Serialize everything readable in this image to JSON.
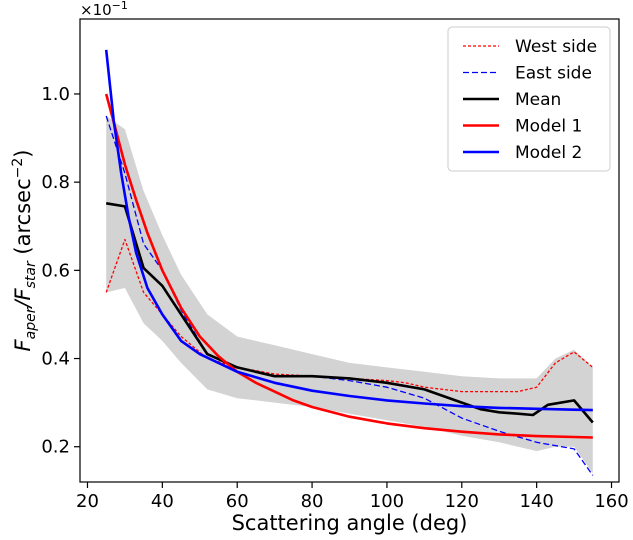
{
  "chart_data": {
    "type": "line",
    "xlabel": "Scattering angle (deg)",
    "ylabel": {
      "prefix": "F",
      "sub1": "aper",
      "slash": "/F",
      "sub2": "star",
      "units_open": " (arcsec",
      "units_exp": "−2",
      "units_close": ")"
    },
    "y_multiplier": {
      "base": "×10",
      "exp": "−1"
    },
    "xlim": [
      18,
      162
    ],
    "ylim": [
      0.12,
      1.17
    ],
    "x_ticks": [
      20,
      40,
      60,
      80,
      100,
      120,
      140,
      160
    ],
    "y_ticks": [
      0.2,
      0.4,
      0.6,
      0.8,
      1.0
    ],
    "x_tick_labels": [
      "20",
      "40",
      "60",
      "80",
      "100",
      "120",
      "140",
      "160"
    ],
    "y_tick_labels": [
      "0.2",
      "0.4",
      "0.6",
      "0.8",
      "1.0"
    ],
    "grid": false,
    "legend_position": "top-right",
    "band": {
      "color": "#d3d3d3",
      "x": [
        25,
        30,
        35,
        40,
        45,
        52,
        60,
        70,
        80,
        90,
        100,
        110,
        120,
        130,
        140,
        145,
        150,
        155
      ],
      "upper": [
        0.95,
        0.92,
        0.78,
        0.68,
        0.59,
        0.5,
        0.45,
        0.43,
        0.41,
        0.39,
        0.38,
        0.37,
        0.36,
        0.355,
        0.355,
        0.4,
        0.42,
        0.38
      ],
      "lower": [
        0.55,
        0.56,
        0.48,
        0.44,
        0.39,
        0.33,
        0.31,
        0.3,
        0.29,
        0.275,
        0.26,
        0.245,
        0.225,
        0.21,
        0.19,
        0.2,
        0.2,
        0.14
      ]
    },
    "series": [
      {
        "name": "West side",
        "color": "#ff0000",
        "style": "dotted",
        "x": [
          25,
          30,
          35,
          40,
          45,
          52,
          60,
          70,
          80,
          90,
          100,
          105,
          110,
          120,
          130,
          135,
          140,
          145,
          150,
          155
        ],
        "y": [
          0.55,
          0.67,
          0.55,
          0.5,
          0.45,
          0.4,
          0.38,
          0.365,
          0.36,
          0.355,
          0.35,
          0.345,
          0.335,
          0.325,
          0.325,
          0.325,
          0.335,
          0.39,
          0.415,
          0.38
        ]
      },
      {
        "name": "East side",
        "color": "#0000ff",
        "style": "dashed",
        "x": [
          25,
          30,
          35,
          40,
          45,
          52,
          60,
          70,
          80,
          90,
          100,
          110,
          120,
          130,
          140,
          150,
          155
        ],
        "y": [
          0.95,
          0.82,
          0.66,
          0.6,
          0.51,
          0.41,
          0.38,
          0.36,
          0.36,
          0.35,
          0.335,
          0.31,
          0.265,
          0.235,
          0.21,
          0.195,
          0.135
        ]
      },
      {
        "name": "Mean",
        "color": "#000000",
        "style": "solid",
        "x": [
          25,
          30,
          35,
          40,
          45,
          52,
          60,
          70,
          80,
          90,
          100,
          110,
          120,
          125,
          130,
          135,
          139,
          143,
          150,
          155
        ],
        "y": [
          0.752,
          0.745,
          0.605,
          0.565,
          0.5,
          0.41,
          0.38,
          0.36,
          0.36,
          0.355,
          0.345,
          0.33,
          0.3,
          0.285,
          0.278,
          0.275,
          0.272,
          0.295,
          0.305,
          0.255
        ]
      },
      {
        "name": "Model 1",
        "color": "#ff0000",
        "style": "solid",
        "x": [
          25,
          28,
          30,
          33,
          36,
          40,
          45,
          50,
          55,
          60,
          65,
          70,
          75,
          80,
          90,
          100,
          110,
          120,
          130,
          140,
          150,
          155
        ],
        "y": [
          1.0,
          0.905,
          0.84,
          0.76,
          0.685,
          0.6,
          0.515,
          0.45,
          0.405,
          0.37,
          0.345,
          0.325,
          0.305,
          0.29,
          0.268,
          0.253,
          0.242,
          0.234,
          0.228,
          0.224,
          0.222,
          0.221
        ]
      },
      {
        "name": "Model 2",
        "color": "#0000ff",
        "style": "solid",
        "x": [
          25,
          27,
          29,
          31,
          33,
          36,
          40,
          45,
          50,
          55,
          60,
          70,
          80,
          90,
          100,
          110,
          120,
          130,
          140,
          150,
          155
        ],
        "y": [
          1.1,
          0.94,
          0.82,
          0.72,
          0.64,
          0.56,
          0.5,
          0.44,
          0.41,
          0.39,
          0.37,
          0.345,
          0.327,
          0.315,
          0.305,
          0.298,
          0.292,
          0.288,
          0.286,
          0.284,
          0.283
        ]
      }
    ]
  }
}
